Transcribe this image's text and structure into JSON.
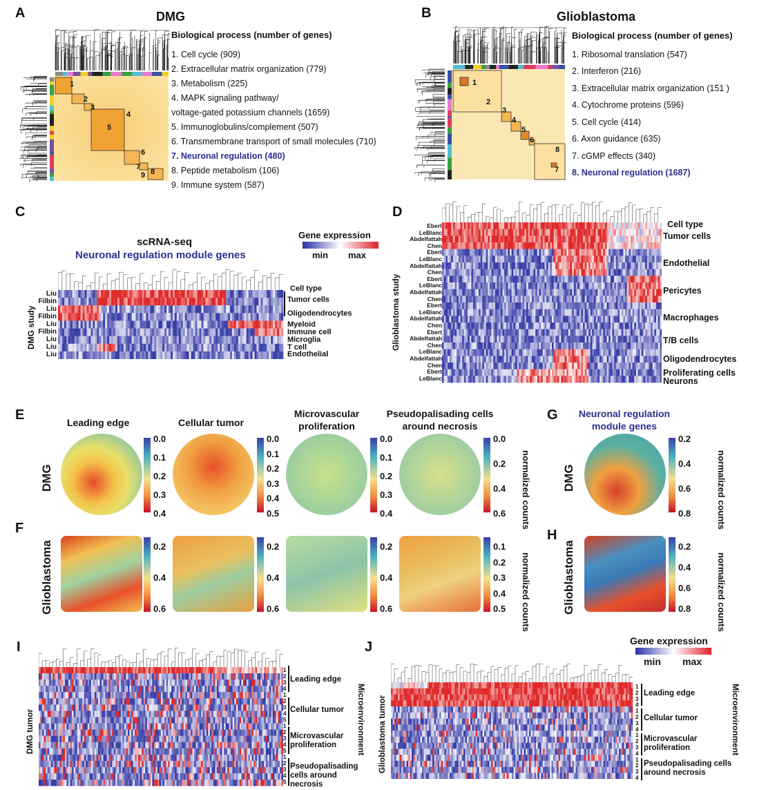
{
  "panels": {
    "A": {
      "letter": "A",
      "title": "DMG",
      "heading": "Biological process (number of genes)",
      "items": [
        {
          "text": "1. Cell cycle (909)",
          "hl": false
        },
        {
          "text": "2. Extracellular matrix organization (779)",
          "hl": false
        },
        {
          "text": "3. Metabolism (225)",
          "hl": false
        },
        {
          "text": "4. MAPK signaling pathway/",
          "hl": false
        },
        {
          "text": "voltage-gated potassium channels (1659)",
          "hl": false
        },
        {
          "text": "5. Immunoglobulins/complement (507)",
          "hl": false
        },
        {
          "text": "6. Transmembrane transport of small molecules (710)",
          "hl": false
        },
        {
          "text": "7. Neuronal regulation (480)",
          "hl": true
        },
        {
          "text": "8. Peptide metabolism (106)",
          "hl": false
        },
        {
          "text": "9. Immune system (587)",
          "hl": false
        }
      ],
      "module_numbers": [
        "1",
        "2",
        "3",
        "4",
        "5",
        "6",
        "7",
        "8",
        "9"
      ]
    },
    "B": {
      "letter": "B",
      "title": "Glioblastoma",
      "heading": "Biological process (number of genes)",
      "items": [
        {
          "text": "1. Ribosomal translation (547)",
          "hl": false
        },
        {
          "text": "2. Interferon (216)",
          "hl": false
        },
        {
          "text": "3. Extracellular matrix organization (151 )",
          "hl": false
        },
        {
          "text": "4. Cytochrome proteins (596)",
          "hl": false
        },
        {
          "text": "5. Cell cycle (414)",
          "hl": false
        },
        {
          "text": "6. Axon guidance (635)",
          "hl": false
        },
        {
          "text": "7. cGMP effects (340)",
          "hl": false
        },
        {
          "text": "8. Neuronal regulation (1687)",
          "hl": true
        }
      ],
      "module_numbers": [
        "1",
        "2",
        "3",
        "4",
        "5",
        "6",
        "7",
        "8"
      ]
    },
    "C": {
      "letter": "C",
      "title1": "scRNA-seq",
      "title2": "Neuronal regulation module genes",
      "legend_title": "Gene expression",
      "legend_min": "min",
      "legend_max": "max",
      "ylabel": "DMG study",
      "celltype_label": "Cell type",
      "studies": [
        "Liu",
        "Filbin",
        "Liu",
        "Filbin",
        "Liu",
        "Filbin",
        "Liu",
        "Liu",
        "Liu"
      ],
      "celltypes": [
        "Tumor cells",
        "Oligodendrocytes",
        "Myeloid",
        "Immune cell",
        "Microglia",
        "T cell",
        "Endothelial"
      ]
    },
    "D": {
      "letter": "D",
      "ylabel": "Glioblastoma study",
      "celltype_label": "Cell type",
      "studies": [
        "Ebert",
        "LeBlanc",
        "Abdelfattah",
        "Chen",
        "Ebert",
        "LeBlanc",
        "Abdelfattah",
        "Chen",
        "Ebert",
        "LeBlanc",
        "Abdelfattah",
        "Chen",
        "Ebert",
        "LeBlanc",
        "Abdelfattah",
        "Chen",
        "Ebert",
        "Abdelfattah",
        "Chen",
        "LeBlanc",
        "Abdelfattah",
        "Chen",
        "Ebert",
        "LeBlanc"
      ],
      "celltypes": [
        "Tumor cells",
        "Endothelial",
        "Pericytes",
        "Macrophages",
        "T/B cells",
        "Oligodendrocytes",
        "Proliferating cells",
        "Neurons"
      ]
    },
    "E": {
      "letter": "E",
      "row_label": "DMG",
      "titles": [
        "Leading edge",
        "Cellular tumor",
        "Microvascular proliferation",
        "Pseudopalisading cells around necrosis"
      ],
      "ticks": [
        [
          "0.0",
          "0.1",
          "0.2",
          "0.3",
          "0.4"
        ],
        [
          "0.0",
          "0.1",
          "0.2",
          "0.3",
          "0.4",
          "0.5"
        ],
        [
          "0.0",
          "0.1",
          "0.2",
          "0.3",
          "0.4"
        ],
        [
          "0.0",
          "0.2",
          "0.4",
          "0.6"
        ]
      ],
      "unit": "normalized counts"
    },
    "F": {
      "letter": "F",
      "row_label": "Glioblastoma",
      "ticks": [
        [
          "0.2",
          "0.4",
          "0.6"
        ],
        [
          "0.2",
          "0.4",
          "0.6"
        ],
        [
          "0.2",
          "0.4",
          "0.6"
        ],
        [
          "0.1",
          "0.2",
          "0.3",
          "0.4",
          "0.5"
        ]
      ],
      "unit": "normalized counts"
    },
    "G": {
      "letter": "G",
      "title1": "Neuronal regulation",
      "title2": "module genes",
      "row_label": "DMG",
      "ticks": [
        "0.2",
        "0.4",
        "0.6",
        "0.8"
      ],
      "unit": "normalized counts"
    },
    "H": {
      "letter": "H",
      "row_label": "Glioblastoma",
      "ticks": [
        "0.2",
        "0.4",
        "0.6",
        "0.8"
      ],
      "unit": "normalized counts"
    },
    "I": {
      "letter": "I",
      "ylabel": "DMG tumor",
      "side_label": "Microenvironment",
      "groups": [
        "Leading edge",
        "Cellular tumor",
        "Microvascular proliferation",
        "Pseudopalisading cells around necrosis"
      ],
      "row_numbers": [
        "1",
        "2",
        "3",
        "4",
        "5"
      ]
    },
    "J": {
      "letter": "J",
      "ylabel": "Glioblastoma tumor",
      "side_label": "Microenvironment",
      "legend_title": "Gene expression",
      "legend_min": "min",
      "legend_max": "max",
      "groups": [
        "Leading edge",
        "Cellular tumor",
        "Microvascular proliferation",
        "Pseudopalisading cells around necrosis"
      ],
      "row_numbers": [
        "1",
        "2",
        "3",
        "4"
      ]
    }
  },
  "colors": {
    "blue": "#3a3fa8",
    "red": "#e02a2a",
    "highlight": "#2b2f8f"
  }
}
